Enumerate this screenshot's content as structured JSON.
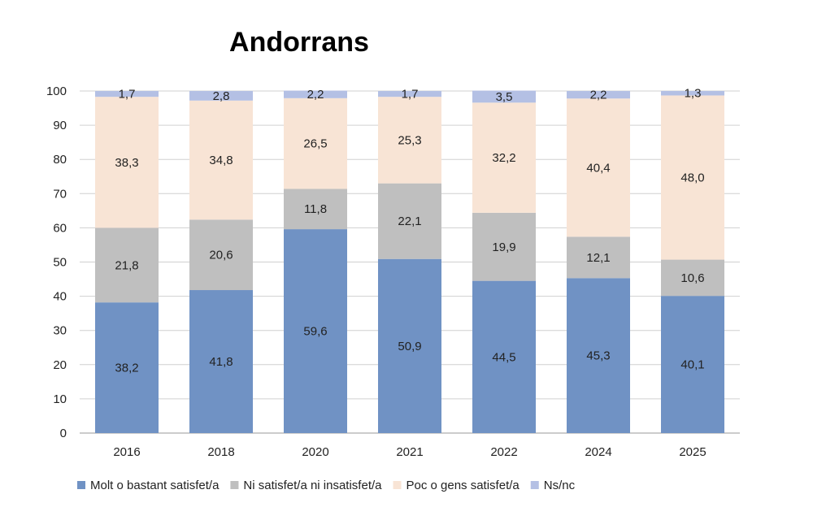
{
  "chart_data": {
    "type": "bar",
    "stacked": true,
    "title": "Andorrans",
    "xlabel": "",
    "ylabel": "",
    "ylim": [
      0,
      100
    ],
    "yticks": [
      "0",
      "10",
      "20",
      "30",
      "40",
      "50",
      "60",
      "70",
      "80",
      "90",
      "100"
    ],
    "grid": true,
    "legend_position": "bottom",
    "categories": [
      "2016",
      "2018",
      "2020",
      "2021",
      "2022",
      "2024",
      "2025"
    ],
    "series": [
      {
        "name": "Molt o bastant satisfet/a",
        "color": "#7092c4",
        "values": [
          38.2,
          41.8,
          59.6,
          50.9,
          44.5,
          45.3,
          40.1
        ],
        "labels": [
          "38,2",
          "41,8",
          "59,6",
          "50,9",
          "44,5",
          "45,3",
          "40,1"
        ]
      },
      {
        "name": "Ni satisfet/a ni insatisfet/a",
        "color": "#bfbfbf",
        "values": [
          21.8,
          20.6,
          11.8,
          22.1,
          19.9,
          12.1,
          10.6
        ],
        "labels": [
          "21,8",
          "20,6",
          "11,8",
          "22,1",
          "19,9",
          "12,1",
          "10,6"
        ]
      },
      {
        "name": "Poc o gens satisfet/a",
        "color": "#f8e4d5",
        "values": [
          38.3,
          34.8,
          26.5,
          25.3,
          32.2,
          40.4,
          48.0
        ],
        "labels": [
          "38,3",
          "34,8",
          "26,5",
          "25,3",
          "32,2",
          "40,4",
          "48,0"
        ]
      },
      {
        "name": "Ns/nc",
        "color": "#b4c0e4",
        "values": [
          1.7,
          2.8,
          2.2,
          1.7,
          3.5,
          2.2,
          1.3
        ],
        "labels": [
          "1,7",
          "2,8",
          "2,2",
          "1,7",
          "3,5",
          "2,2",
          "1,3"
        ]
      }
    ]
  }
}
